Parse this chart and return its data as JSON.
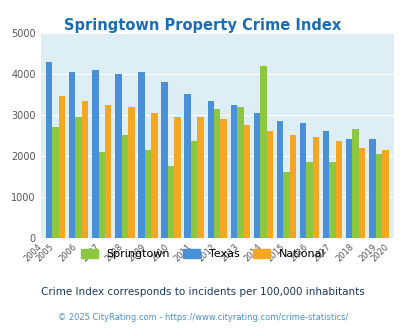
{
  "title": "Springtown Property Crime Index",
  "plot_years": [
    2005,
    2006,
    2007,
    2008,
    2009,
    2010,
    2011,
    2012,
    2013,
    2014,
    2015,
    2016,
    2017,
    2018,
    2019
  ],
  "springtown": [
    2700,
    2950,
    2100,
    2500,
    2150,
    1750,
    2350,
    3150,
    3200,
    4200,
    1600,
    1850,
    1850,
    2650,
    2050
  ],
  "texas": [
    4300,
    4050,
    4100,
    4000,
    4050,
    3800,
    3500,
    3350,
    3250,
    3050,
    2850,
    2800,
    2600,
    2400,
    2400
  ],
  "national": [
    3450,
    3350,
    3250,
    3200,
    3050,
    2950,
    2950,
    2900,
    2750,
    2600,
    2500,
    2450,
    2350,
    2200,
    2150
  ],
  "springtown_color": "#8dc63f",
  "texas_color": "#4a90d9",
  "national_color": "#f5a623",
  "bg_color": "#deeef5",
  "ylim": [
    0,
    5000
  ],
  "yticks": [
    0,
    1000,
    2000,
    3000,
    4000,
    5000
  ],
  "all_xtick_years": [
    2004,
    2005,
    2006,
    2007,
    2008,
    2009,
    2010,
    2011,
    2012,
    2013,
    2014,
    2015,
    2016,
    2017,
    2018,
    2019,
    2020
  ],
  "subtitle": "Crime Index corresponds to incidents per 100,000 inhabitants",
  "footer": "© 2025 CityRating.com - https://www.cityrating.com/crime-statistics/",
  "title_color": "#1a6db5",
  "subtitle_color": "#1a3a5c",
  "footer_color": "#4a90d9"
}
